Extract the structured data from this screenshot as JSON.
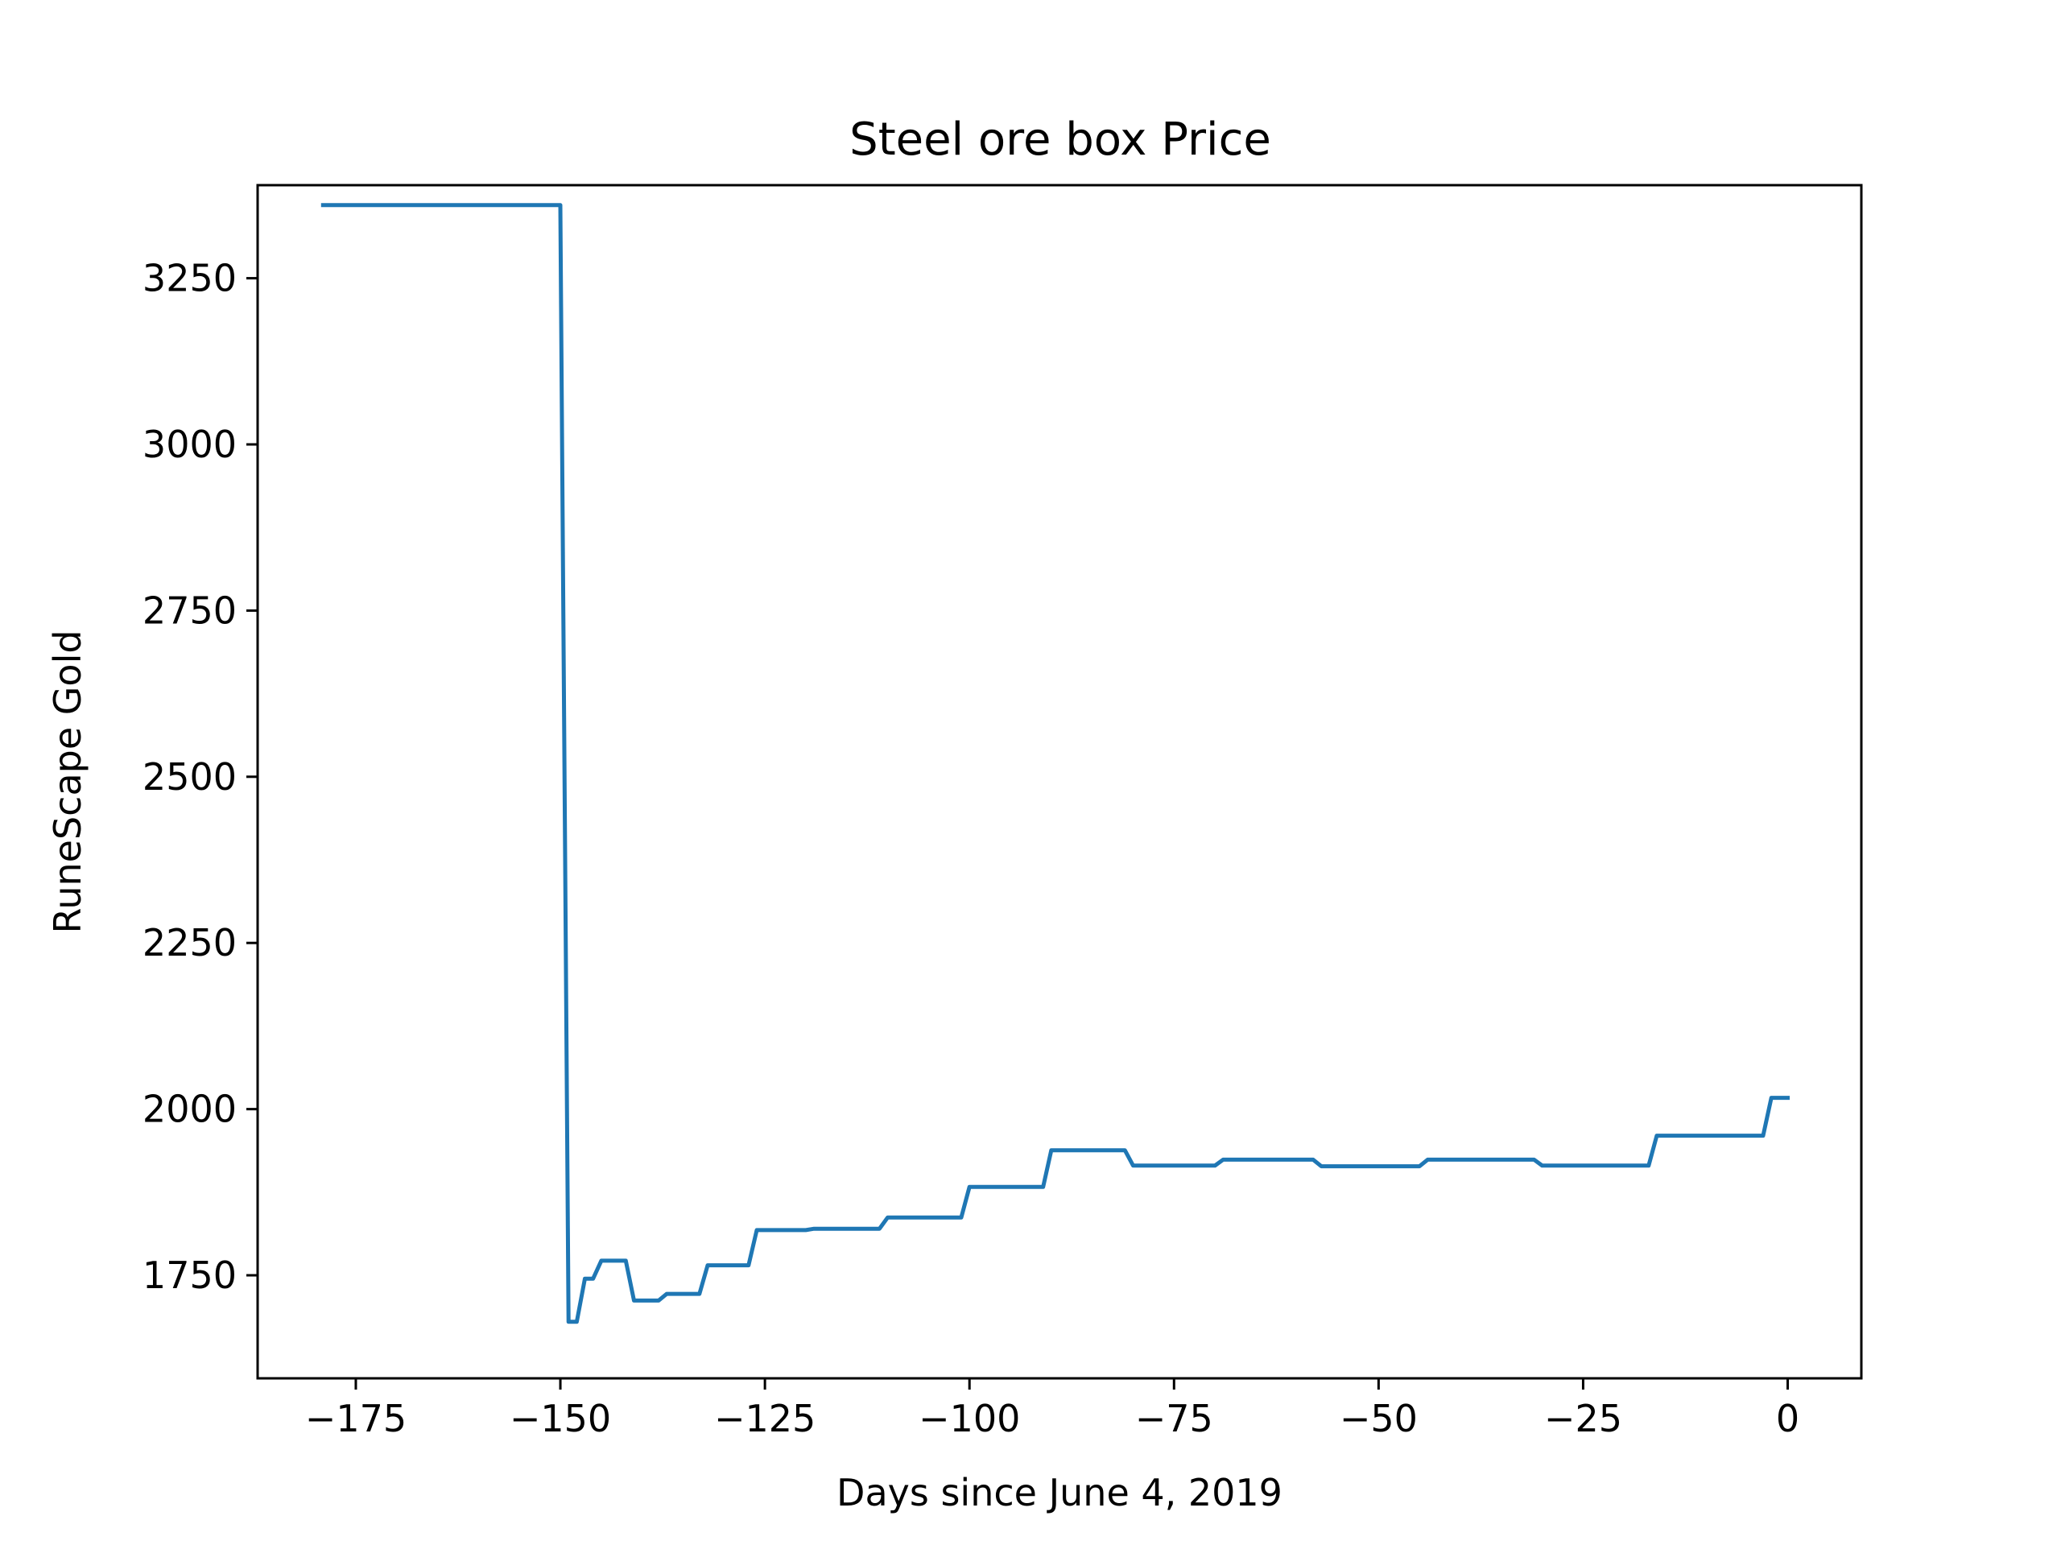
{
  "chart_data": {
    "type": "line",
    "title": "Steel ore box Price",
    "xlabel": "Days since June 4, 2019",
    "ylabel": "RuneScape Gold",
    "xlim": [
      -187,
      9
    ],
    "ylim": [
      1595,
      3390
    ],
    "grid": false,
    "x_ticks": [
      -175,
      -150,
      -125,
      -100,
      -75,
      -50,
      -25,
      0
    ],
    "x_tick_labels": [
      "−175",
      "−150",
      "−125",
      "−100",
      "−75",
      "−50",
      "−25",
      "0"
    ],
    "y_ticks": [
      1750,
      2000,
      2250,
      2500,
      2750,
      3000,
      3250
    ],
    "y_tick_labels": [
      "1750",
      "2000",
      "2250",
      "2500",
      "2750",
      "3000",
      "3250"
    ],
    "series": [
      {
        "color": "#1f77b4",
        "x": [
          -179,
          -150,
          -149,
          -148,
          -147,
          -146,
          -145,
          -142,
          -141,
          -138,
          -137,
          -133,
          -132,
          -127,
          -126,
          -120,
          -119,
          -111,
          -110,
          -101,
          -100,
          -91,
          -90,
          -81,
          -80,
          -70,
          -69,
          -58,
          -57,
          -45,
          -44,
          -31,
          -30,
          -17,
          -16,
          -3,
          -2,
          0
        ],
        "y": [
          3360,
          3360,
          1680,
          1680,
          1745,
          1745,
          1772,
          1772,
          1712,
          1712,
          1722,
          1722,
          1765,
          1765,
          1818,
          1818,
          1820,
          1820,
          1837,
          1837,
          1883,
          1883,
          1938,
          1938,
          1915,
          1915,
          1924,
          1924,
          1914,
          1914,
          1924,
          1924,
          1915,
          1915,
          1960,
          1960,
          2017,
          2017
        ]
      }
    ]
  }
}
